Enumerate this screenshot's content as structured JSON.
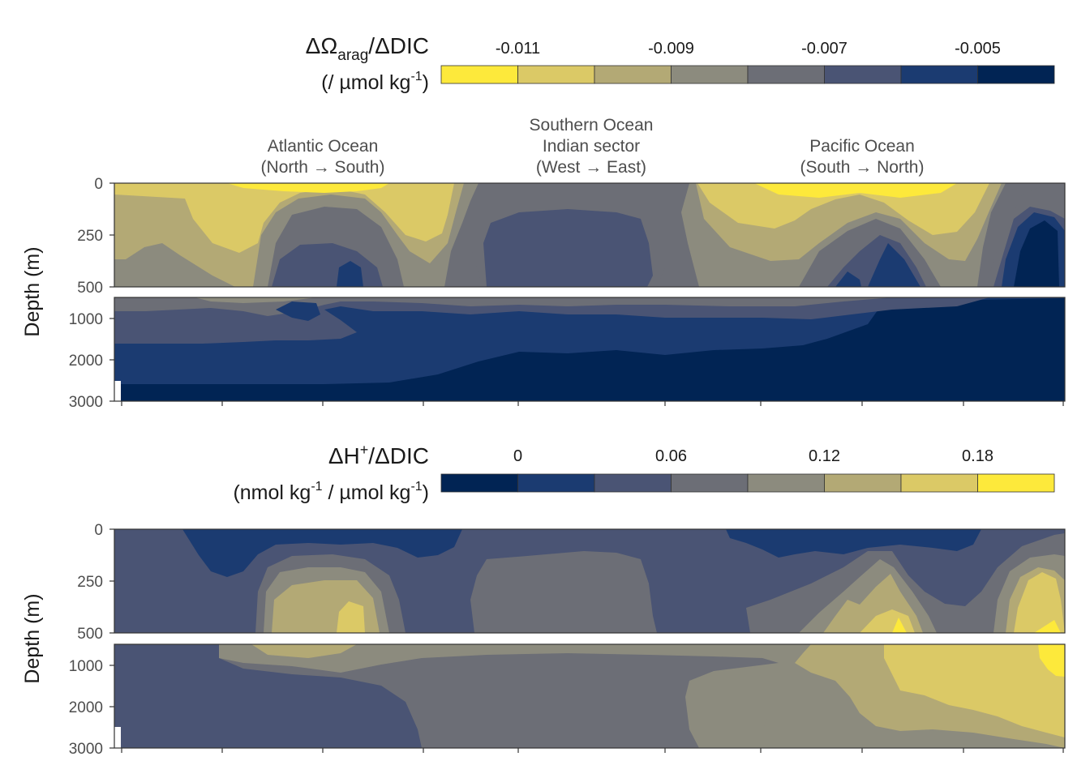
{
  "sections": {
    "atlantic": {
      "line1": "Atlantic Ocean",
      "line2": "(North → South)"
    },
    "southern": {
      "line1": "Southern Ocean",
      "line2": "Indian sector",
      "line3": "(West → East)"
    },
    "pacific": {
      "line1": "Pacific Ocean",
      "line2": "(South → North)"
    }
  },
  "chart_data": [
    {
      "type": "heatmap",
      "legend_title": {
        "symbol": "ΔΩ",
        "sub": "arag",
        "rest": "/ΔDIC",
        "unit_pre": "(/ µmol kg",
        "unit_sup": "-1",
        "unit_post": ")"
      },
      "legend_bins": [
        -0.012,
        -0.011,
        -0.01,
        -0.009,
        -0.008,
        -0.007,
        -0.006,
        -0.005,
        -0.004
      ],
      "legend_tick_labels": [
        "-0.011",
        "-0.009",
        "-0.007",
        "-0.005"
      ],
      "legend_tick_values": [
        -0.011,
        -0.009,
        -0.007,
        -0.005
      ],
      "palette": [
        "#fde93b",
        "#dbc966",
        "#b3a975",
        "#8c8b7e",
        "#6c6e76",
        "#4a5474",
        "#1b3b71",
        "#012454"
      ],
      "ylabel": "Depth (m)",
      "upper_panel": {
        "ylim": [
          0,
          500
        ],
        "yticks": [
          "0",
          "250",
          "500"
        ]
      },
      "lower_panel": {
        "ylim": [
          500,
          3000
        ],
        "yticks": [
          "1000",
          "2000",
          "3000"
        ]
      }
    },
    {
      "type": "heatmap",
      "legend_title": {
        "symbol": "ΔH",
        "sup": "+",
        "rest": "/ΔDIC",
        "unit_pre": "(nmol kg",
        "unit_sup": "-1",
        "unit_mid": " / µmol kg",
        "unit_sup2": "-1",
        "unit_post": ")"
      },
      "legend_bins": [
        -0.03,
        0.0,
        0.03,
        0.06,
        0.09,
        0.12,
        0.15,
        0.18,
        0.21
      ],
      "legend_tick_labels": [
        "0",
        "0.06",
        "0.12",
        "0.18"
      ],
      "legend_tick_values": [
        0,
        0.06,
        0.12,
        0.18
      ],
      "palette": [
        "#012454",
        "#1b3b71",
        "#4a5474",
        "#6c6e76",
        "#8c8b7e",
        "#b3a975",
        "#dbc966",
        "#fde93b"
      ],
      "ylabel": "Depth (m)",
      "upper_panel": {
        "ylim": [
          0,
          500
        ],
        "yticks": [
          "0",
          "250",
          "500"
        ]
      },
      "lower_panel": {
        "ylim": [
          500,
          3000
        ],
        "yticks": [
          "1000",
          "2000",
          "3000"
        ]
      }
    }
  ],
  "colors": {
    "text": "#1a1a1a",
    "strip_text": "#4d4d4d",
    "axis_text": "#4d4d4d",
    "panel_border": "#333333"
  }
}
